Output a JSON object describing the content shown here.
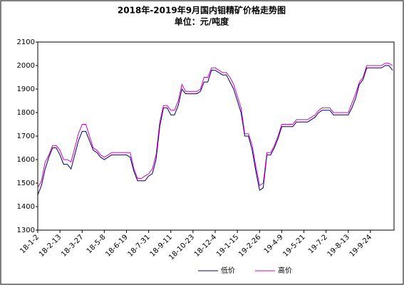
{
  "chart_data": {
    "type": "line",
    "title": "2018年-2019年9月国内钼精矿价格走势图",
    "subtitle": "单位：元/吨度",
    "categories": [
      "18-1-2",
      null,
      null,
      null,
      null,
      null,
      "18-2-13",
      null,
      null,
      null,
      null,
      null,
      "18-3-27",
      null,
      null,
      null,
      null,
      null,
      "18-5-8",
      null,
      null,
      null,
      null,
      null,
      "18-6-19",
      null,
      null,
      null,
      null,
      null,
      "18-7-31",
      null,
      null,
      null,
      null,
      null,
      "18-9-11",
      null,
      null,
      null,
      null,
      null,
      "18-10-23",
      null,
      null,
      null,
      null,
      null,
      "18-12-4",
      null,
      null,
      null,
      null,
      null,
      "19-1-15",
      null,
      null,
      null,
      null,
      null,
      "19-2-26",
      null,
      null,
      null,
      null,
      null,
      "19-4-9",
      null,
      null,
      null,
      null,
      null,
      "19-5-21",
      null,
      null,
      null,
      null,
      null,
      "19-7-2",
      null,
      null,
      null,
      null,
      null,
      "19-8-13",
      null,
      null,
      null,
      null,
      null,
      "19-9-24",
      null,
      null,
      null,
      null,
      null,
      null
    ],
    "series": [
      {
        "name": "低价",
        "color": "#000066",
        "values": [
          1450,
          1490,
          1560,
          1610,
          1650,
          1650,
          1620,
          1580,
          1580,
          1560,
          1620,
          1680,
          1720,
          1720,
          1680,
          1640,
          1630,
          1610,
          1600,
          1610,
          1620,
          1620,
          1620,
          1620,
          1620,
          1610,
          1550,
          1510,
          1510,
          1510,
          1530,
          1540,
          1600,
          1740,
          1820,
          1820,
          1790,
          1790,
          1830,
          1900,
          1880,
          1880,
          1880,
          1880,
          1890,
          1930,
          1930,
          1980,
          1980,
          1970,
          1960,
          1960,
          1930,
          1900,
          1850,
          1800,
          1700,
          1700,
          1640,
          1550,
          1470,
          1480,
          1620,
          1620,
          1650,
          1690,
          1740,
          1740,
          1740,
          1740,
          1760,
          1760,
          1760,
          1760,
          1770,
          1780,
          1800,
          1810,
          1810,
          1810,
          1790,
          1790,
          1790,
          1790,
          1790,
          1820,
          1860,
          1920,
          1940,
          1990,
          1990,
          1990,
          1990,
          1990,
          2000,
          2000,
          1980
        ]
      },
      {
        "name": "高价",
        "color": "#cc00cc",
        "values": [
          1480,
          1510,
          1590,
          1620,
          1660,
          1660,
          1640,
          1600,
          1600,
          1590,
          1650,
          1710,
          1750,
          1750,
          1700,
          1650,
          1640,
          1620,
          1610,
          1620,
          1630,
          1630,
          1630,
          1630,
          1630,
          1630,
          1560,
          1520,
          1520,
          1530,
          1540,
          1560,
          1620,
          1760,
          1830,
          1830,
          1810,
          1810,
          1850,
          1920,
          1890,
          1890,
          1890,
          1890,
          1900,
          1950,
          1950,
          1990,
          1990,
          1980,
          1970,
          1970,
          1950,
          1920,
          1870,
          1820,
          1710,
          1710,
          1660,
          1570,
          1490,
          1500,
          1630,
          1630,
          1660,
          1700,
          1750,
          1750,
          1750,
          1750,
          1770,
          1770,
          1770,
          1770,
          1780,
          1790,
          1810,
          1820,
          1820,
          1820,
          1800,
          1800,
          1800,
          1800,
          1800,
          1840,
          1880,
          1930,
          1950,
          2000,
          2000,
          2000,
          2000,
          2000,
          2010,
          2010,
          2000
        ]
      }
    ],
    "ylim": [
      1300,
      2100
    ],
    "yticks": [
      1300,
      1400,
      1500,
      1600,
      1700,
      1800,
      1900,
      2000,
      2100
    ],
    "grid": false,
    "legend": "bottom"
  }
}
